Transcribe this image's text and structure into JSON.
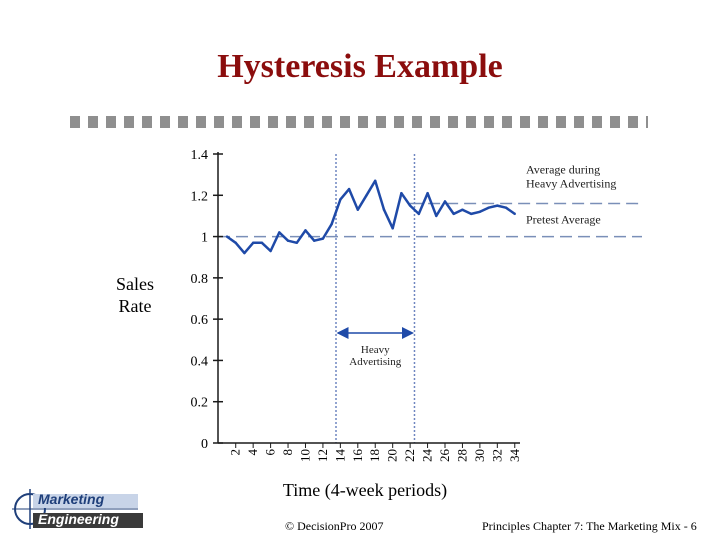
{
  "slide": {
    "title": "Hysteresis Example",
    "footer_left": "© DecisionPro 2007",
    "footer_right": "Principles Chapter 7: The Marketing Mix - 6",
    "logo_line1": "Marketing",
    "logo_line2": "Engineering"
  },
  "chart_data": {
    "type": "line",
    "title": "",
    "ylabel_lines": [
      "Sales",
      "Rate"
    ],
    "xlabel": "Time (4-week periods)",
    "ylim": [
      0,
      1.4
    ],
    "xlim": [
      1,
      35
    ],
    "yticks": [
      {
        "value": 0,
        "label": "0"
      },
      {
        "value": 0.2,
        "label": "0.2"
      },
      {
        "value": 0.4,
        "label": "0.4"
      },
      {
        "value": 0.6,
        "label": "0.6"
      },
      {
        "value": 0.8,
        "label": "0.8"
      },
      {
        "value": 1.0,
        "label": "1"
      },
      {
        "value": 1.2,
        "label": "1.2"
      },
      {
        "value": 1.4,
        "label": "1.4"
      }
    ],
    "xticks": [
      "2",
      "4",
      "6",
      "8",
      "10",
      "12",
      "14",
      "16",
      "18",
      "20",
      "22",
      "24",
      "26",
      "28",
      "30",
      "32",
      "34"
    ],
    "series": [
      {
        "x": [
          1,
          2,
          3,
          4,
          5,
          6,
          7,
          8,
          9,
          10,
          11,
          12,
          13,
          14,
          15,
          16,
          17,
          18,
          19,
          20,
          21,
          22,
          23,
          24,
          25,
          26,
          27,
          28,
          29,
          30,
          31,
          32,
          33,
          34
        ],
        "y": [
          1.0,
          0.97,
          0.92,
          0.97,
          0.97,
          0.93,
          1.02,
          0.98,
          0.97,
          1.03,
          0.98,
          0.99,
          1.06,
          1.18,
          1.23,
          1.13,
          1.2,
          1.27,
          1.13,
          1.04,
          1.21,
          1.15,
          1.11,
          1.21,
          1.1,
          1.17,
          1.11,
          1.13,
          1.11,
          1.12,
          1.14,
          1.15,
          1.14,
          1.11
        ],
        "color": "#1f4aa8"
      }
    ],
    "reference_lines": [
      {
        "label": "Pretest Average",
        "y": 1.0
      },
      {
        "label": "Average during Heavy Advertising",
        "label_lines": [
          "Average during",
          "Heavy Advertising"
        ],
        "y": 1.16
      }
    ],
    "heavy_advertising": {
      "label_lines": [
        "Heavy",
        "Advertising"
      ],
      "x_start": 13.5,
      "x_end": 22.5
    }
  }
}
